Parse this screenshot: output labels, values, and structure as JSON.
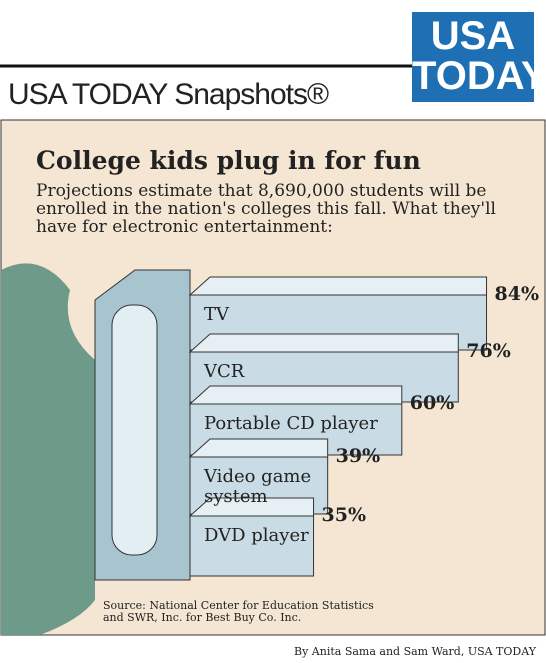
{
  "header": "USA TODAY Snapshots®",
  "logo": {
    "line1": "USA",
    "line2": "TODAY."
  },
  "chart_data": {
    "type": "bar",
    "title": "College kids plug in for fun",
    "subtitle": "Projections estimate that 8,690,000 students will be enrolled in the nation's colleges this fall. What they'll have for electronic entertainment:",
    "categories": [
      "TV",
      "VCR",
      "Portable CD player",
      "Video game\nsystem",
      "DVD player"
    ],
    "values": [
      84,
      76,
      60,
      39,
      35
    ],
    "value_labels": [
      "84%",
      "76%",
      "60%",
      "39%",
      "35%"
    ],
    "color": "#c9dce5",
    "source": "Source: National Center for Education Statistics\nand SWR, Inc. for Best Buy Co. Inc.",
    "credit": "By Anita Sama and Sam Ward, USA TODAY"
  }
}
